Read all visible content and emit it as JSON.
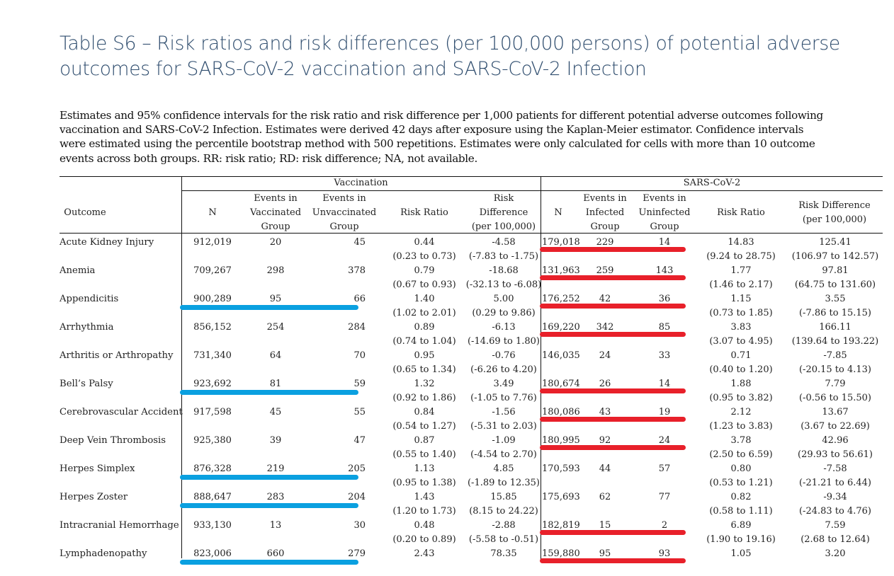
{
  "title": "Table S6 – Risk ratios and risk differences (per 100,000 persons) of potential adverse outcomes for SARS-CoV-2 vaccination and SARS-CoV-2 Infection",
  "caption": "Estimates and 95% confidence intervals for the risk ratio and risk difference per 1,000 patients for different potential adverse outcomes following vaccination and SARS-CoV-2 Infection. Estimates were derived 42 days after exposure using the Kaplan-Meier estimator. Confidence intervals were estimated using the percentile bootstrap method with 500 repetitions. Estimates were only calculated for cells with more than 10 outcome events across both groups. RR: risk ratio; RD: risk difference; NA, not available.",
  "highlight_colors": {
    "vaccination": "#0aa0e0",
    "infection": "#e8202a"
  },
  "table": {
    "group_headers": {
      "vaccination": "Vaccination",
      "infection": "SARS-CoV-2"
    },
    "columns": {
      "outcome": "Outcome",
      "vax_n": "N",
      "vax_events_vaccinated": [
        "Events in",
        "Vaccinated",
        "Group"
      ],
      "vax_events_unvaccinated": [
        "Events in",
        "Unvaccinated",
        "Group"
      ],
      "vax_rr": "Risk Ratio",
      "vax_rd": [
        "Risk",
        "Difference",
        "(per 100,000)"
      ],
      "inf_n": "N",
      "inf_events_infected": [
        "Events in",
        "Infected",
        "Group"
      ],
      "inf_events_uninfected": [
        "Events in",
        "Uninfected",
        "Group"
      ],
      "inf_rr": "Risk Ratio",
      "inf_rd": [
        "Risk Difference",
        "(per 100,000)"
      ]
    },
    "rows": [
      {
        "outcome": "Acute Kidney Injury",
        "vax_n": "912,019",
        "vax_ev1": "20",
        "vax_ev2": "45",
        "vax_rr": "0.44",
        "vax_rr_ci": "(0.23 to 0.73)",
        "vax_rd": "-4.58",
        "vax_rd_ci": "(-7.83 to -1.75)",
        "inf_n": "179,018",
        "inf_ev1": "229",
        "inf_ev2": "14",
        "inf_rr": "14.83",
        "inf_rr_ci": "(9.24 to 28.75)",
        "inf_rd": "125.41",
        "inf_rd_ci": "(106.97 to 142.57)",
        "vax_marked": false,
        "inf_marked": true
      },
      {
        "outcome": "Anemia",
        "vax_n": "709,267",
        "vax_ev1": "298",
        "vax_ev2": "378",
        "vax_rr": "0.79",
        "vax_rr_ci": "(0.67 to 0.93)",
        "vax_rd": "-18.68",
        "vax_rd_ci": "(-32.13 to -6.08)",
        "inf_n": "131,963",
        "inf_ev1": "259",
        "inf_ev2": "143",
        "inf_rr": "1.77",
        "inf_rr_ci": "(1.46 to 2.17)",
        "inf_rd": "97.81",
        "inf_rd_ci": "(64.75 to 131.60)",
        "vax_marked": false,
        "inf_marked": true
      },
      {
        "outcome": "Appendicitis",
        "vax_n": "900,289",
        "vax_ev1": "95",
        "vax_ev2": "66",
        "vax_rr": "1.40",
        "vax_rr_ci": "(1.02 to 2.01)",
        "vax_rd": "5.00",
        "vax_rd_ci": "(0.29 to 9.86)",
        "inf_n": "176,252",
        "inf_ev1": "42",
        "inf_ev2": "36",
        "inf_rr": "1.15",
        "inf_rr_ci": "(0.73 to 1.85)",
        "inf_rd": "3.55",
        "inf_rd_ci": "(-7.86 to 15.15)",
        "vax_marked": true,
        "inf_marked": true
      },
      {
        "outcome": "Arrhythmia",
        "vax_n": "856,152",
        "vax_ev1": "254",
        "vax_ev2": "284",
        "vax_rr": "0.89",
        "vax_rr_ci": "(0.74 to 1.04)",
        "vax_rd": "-6.13",
        "vax_rd_ci": "(-14.69 to 1.80)",
        "inf_n": "169,220",
        "inf_ev1": "342",
        "inf_ev2": "85",
        "inf_rr": "3.83",
        "inf_rr_ci": "(3.07 to 4.95)",
        "inf_rd": "166.11",
        "inf_rd_ci": "(139.64 to 193.22)",
        "vax_marked": false,
        "inf_marked": true
      },
      {
        "outcome": "Arthritis or Arthropathy",
        "vax_n": "731,340",
        "vax_ev1": "64",
        "vax_ev2": "70",
        "vax_rr": "0.95",
        "vax_rr_ci": "(0.65 to 1.34)",
        "vax_rd": "-0.76",
        "vax_rd_ci": "(-6.26 to 4.20)",
        "inf_n": "146,035",
        "inf_ev1": "24",
        "inf_ev2": "33",
        "inf_rr": "0.71",
        "inf_rr_ci": "(0.40 to 1.20)",
        "inf_rd": "-7.85",
        "inf_rd_ci": "(-20.15 to 4.13)",
        "vax_marked": false,
        "inf_marked": false
      },
      {
        "outcome": "Bell’s Palsy",
        "vax_n": "923,692",
        "vax_ev1": "81",
        "vax_ev2": "59",
        "vax_rr": "1.32",
        "vax_rr_ci": "(0.92 to 1.86)",
        "vax_rd": "3.49",
        "vax_rd_ci": "(-1.05 to 7.76)",
        "inf_n": "180,674",
        "inf_ev1": "26",
        "inf_ev2": "14",
        "inf_rr": "1.88",
        "inf_rr_ci": "(0.95 to 3.82)",
        "inf_rd": "7.79",
        "inf_rd_ci": "(-0.56 to 15.50)",
        "vax_marked": true,
        "inf_marked": true
      },
      {
        "outcome": "Cerebrovascular Accident",
        "vax_n": "917,598",
        "vax_ev1": "45",
        "vax_ev2": "55",
        "vax_rr": "0.84",
        "vax_rr_ci": "(0.54 to 1.27)",
        "vax_rd": "-1.56",
        "vax_rd_ci": "(-5.31 to 2.03)",
        "inf_n": "180,086",
        "inf_ev1": "43",
        "inf_ev2": "19",
        "inf_rr": "2.12",
        "inf_rr_ci": "(1.23 to 3.83)",
        "inf_rd": "13.67",
        "inf_rd_ci": "(3.67 to 22.69)",
        "vax_marked": false,
        "inf_marked": true
      },
      {
        "outcome": "Deep Vein Thrombosis",
        "vax_n": "925,380",
        "vax_ev1": "39",
        "vax_ev2": "47",
        "vax_rr": "0.87",
        "vax_rr_ci": "(0.55 to 1.40)",
        "vax_rd": "-1.09",
        "vax_rd_ci": "(-4.54 to 2.70)",
        "inf_n": "180,995",
        "inf_ev1": "92",
        "inf_ev2": "24",
        "inf_rr": "3.78",
        "inf_rr_ci": "(2.50 to 6.59)",
        "inf_rd": "42.96",
        "inf_rd_ci": "(29.93 to 56.61)",
        "vax_marked": false,
        "inf_marked": true
      },
      {
        "outcome": "Herpes Simplex",
        "vax_n": "876,328",
        "vax_ev1": "219",
        "vax_ev2": "205",
        "vax_rr": "1.13",
        "vax_rr_ci": "(0.95 to 1.38)",
        "vax_rd": "4.85",
        "vax_rd_ci": "(-1.89 to 12.35)",
        "inf_n": "170,593",
        "inf_ev1": "44",
        "inf_ev2": "57",
        "inf_rr": "0.80",
        "inf_rr_ci": "(0.53 to 1.21)",
        "inf_rd": "-7.58",
        "inf_rd_ci": "(-21.21 to 6.44)",
        "vax_marked": true,
        "inf_marked": false
      },
      {
        "outcome": "Herpes Zoster",
        "vax_n": "888,647",
        "vax_ev1": "283",
        "vax_ev2": "204",
        "vax_rr": "1.43",
        "vax_rr_ci": "(1.20 to 1.73)",
        "vax_rd": "15.85",
        "vax_rd_ci": "(8.15 to 24.22)",
        "inf_n": "175,693",
        "inf_ev1": "62",
        "inf_ev2": "77",
        "inf_rr": "0.82",
        "inf_rr_ci": "(0.58 to 1.11)",
        "inf_rd": "-9.34",
        "inf_rd_ci": "(-24.83 to 4.76)",
        "vax_marked": true,
        "inf_marked": false
      },
      {
        "outcome": "Intracranial Hemorrhage",
        "vax_n": "933,130",
        "vax_ev1": "13",
        "vax_ev2": "30",
        "vax_rr": "0.48",
        "vax_rr_ci": "(0.20 to 0.89)",
        "vax_rd": "-2.88",
        "vax_rd_ci": "(-5.58 to -0.51)",
        "inf_n": "182,819",
        "inf_ev1": "15",
        "inf_ev2": "2",
        "inf_rr": "6.89",
        "inf_rr_ci": "(1.90 to 19.16)",
        "inf_rd": "7.59",
        "inf_rd_ci": "(2.68 to 12.64)",
        "vax_marked": false,
        "inf_marked": true
      },
      {
        "outcome": "Lymphadenopathy",
        "vax_n": "823,006",
        "vax_ev1": "660",
        "vax_ev2": "279",
        "vax_rr": "2.43",
        "vax_rr_ci": "",
        "vax_rd": "78.35",
        "vax_rd_ci": "",
        "inf_n": "159,880",
        "inf_ev1": "95",
        "inf_ev2": "93",
        "inf_rr": "1.05",
        "inf_rr_ci": "",
        "inf_rd": "3.20",
        "inf_rd_ci": "",
        "vax_marked": true,
        "inf_marked": true
      }
    ]
  }
}
